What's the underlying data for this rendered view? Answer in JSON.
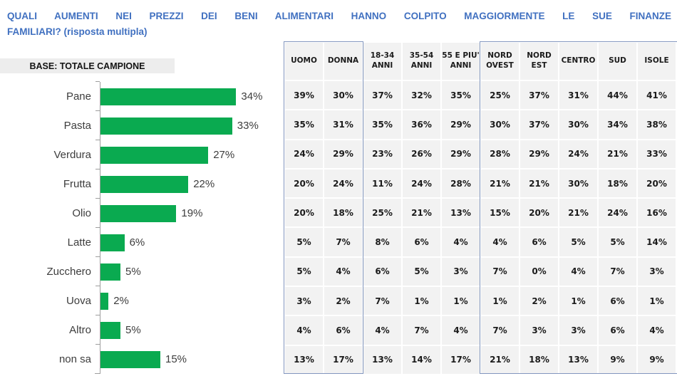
{
  "title": {
    "line1": "QUALI AUMENTI NEI PREZZI DEI BENI ALIMENTARI HANNO COLPITO MAGGIORMENTE LE SUE FINANZE",
    "line2": "FAMILIARI? (risposta multipla)"
  },
  "base_label": "BASE: TOTALE CAMPIONE",
  "colors": {
    "title_blue": "#4070c0",
    "bar_green": "#0aaa50",
    "base_label_bg": "#ededed",
    "cell_bg": "#f2f2f2",
    "group_border": "#8296be",
    "axis_gray": "#9e9e9e"
  },
  "chart_data": {
    "type": "bar",
    "orientation": "horizontal",
    "title": "",
    "xlabel": "",
    "ylabel": "",
    "xlim": [
      0,
      40
    ],
    "grid": false,
    "value_suffix": "%",
    "categories": [
      "Pane",
      "Pasta",
      "Verdura",
      "Frutta",
      "Olio",
      "Latte",
      "Zucchero",
      "Uova",
      "Altro",
      "non sa"
    ],
    "values": [
      34,
      33,
      27,
      22,
      19,
      6,
      5,
      2,
      5,
      15
    ]
  },
  "table": {
    "columns": [
      "UOMO",
      "DONNA",
      "18-34\nANNI",
      "35-54\nANNI",
      "55 E PIU'\nANNI",
      "NORD\nOVEST",
      "NORD\nEST",
      "CENTRO",
      "SUD",
      "ISOLE"
    ],
    "column_groups": [
      {
        "name": "genere",
        "columns": [
          "UOMO",
          "DONNA"
        ],
        "bordered": true
      },
      {
        "name": "eta",
        "columns": [
          "18-34 ANNI",
          "35-54 ANNI",
          "55 E PIU' ANNI"
        ],
        "bordered": false
      },
      {
        "name": "area",
        "columns": [
          "NORD OVEST",
          "NORD EST",
          "CENTRO",
          "SUD",
          "ISOLE"
        ],
        "bordered": true
      }
    ],
    "rows": [
      {
        "category": "Pane",
        "values": [
          "39%",
          "30%",
          "37%",
          "32%",
          "35%",
          "25%",
          "37%",
          "31%",
          "44%",
          "41%"
        ]
      },
      {
        "category": "Pasta",
        "values": [
          "35%",
          "31%",
          "35%",
          "36%",
          "29%",
          "30%",
          "37%",
          "30%",
          "34%",
          "38%"
        ]
      },
      {
        "category": "Verdura",
        "values": [
          "24%",
          "29%",
          "23%",
          "26%",
          "29%",
          "28%",
          "29%",
          "24%",
          "21%",
          "33%"
        ]
      },
      {
        "category": "Frutta",
        "values": [
          "20%",
          "24%",
          "11%",
          "24%",
          "28%",
          "21%",
          "21%",
          "30%",
          "18%",
          "20%"
        ]
      },
      {
        "category": "Olio",
        "values": [
          "20%",
          "18%",
          "25%",
          "21%",
          "13%",
          "15%",
          "20%",
          "21%",
          "24%",
          "16%"
        ]
      },
      {
        "category": "Latte",
        "values": [
          "5%",
          "7%",
          "8%",
          "6%",
          "4%",
          "4%",
          "6%",
          "5%",
          "5%",
          "14%"
        ]
      },
      {
        "category": "Zucchero",
        "values": [
          "5%",
          "4%",
          "6%",
          "5%",
          "3%",
          "7%",
          "0%",
          "4%",
          "7%",
          "3%"
        ]
      },
      {
        "category": "Uova",
        "values": [
          "3%",
          "2%",
          "7%",
          "1%",
          "1%",
          "1%",
          "2%",
          "1%",
          "6%",
          "1%"
        ]
      },
      {
        "category": "Altro",
        "values": [
          "4%",
          "6%",
          "4%",
          "7%",
          "4%",
          "7%",
          "3%",
          "3%",
          "6%",
          "4%"
        ]
      },
      {
        "category": "non sa",
        "values": [
          "13%",
          "17%",
          "13%",
          "14%",
          "17%",
          "21%",
          "18%",
          "13%",
          "9%",
          "9%"
        ]
      }
    ]
  }
}
